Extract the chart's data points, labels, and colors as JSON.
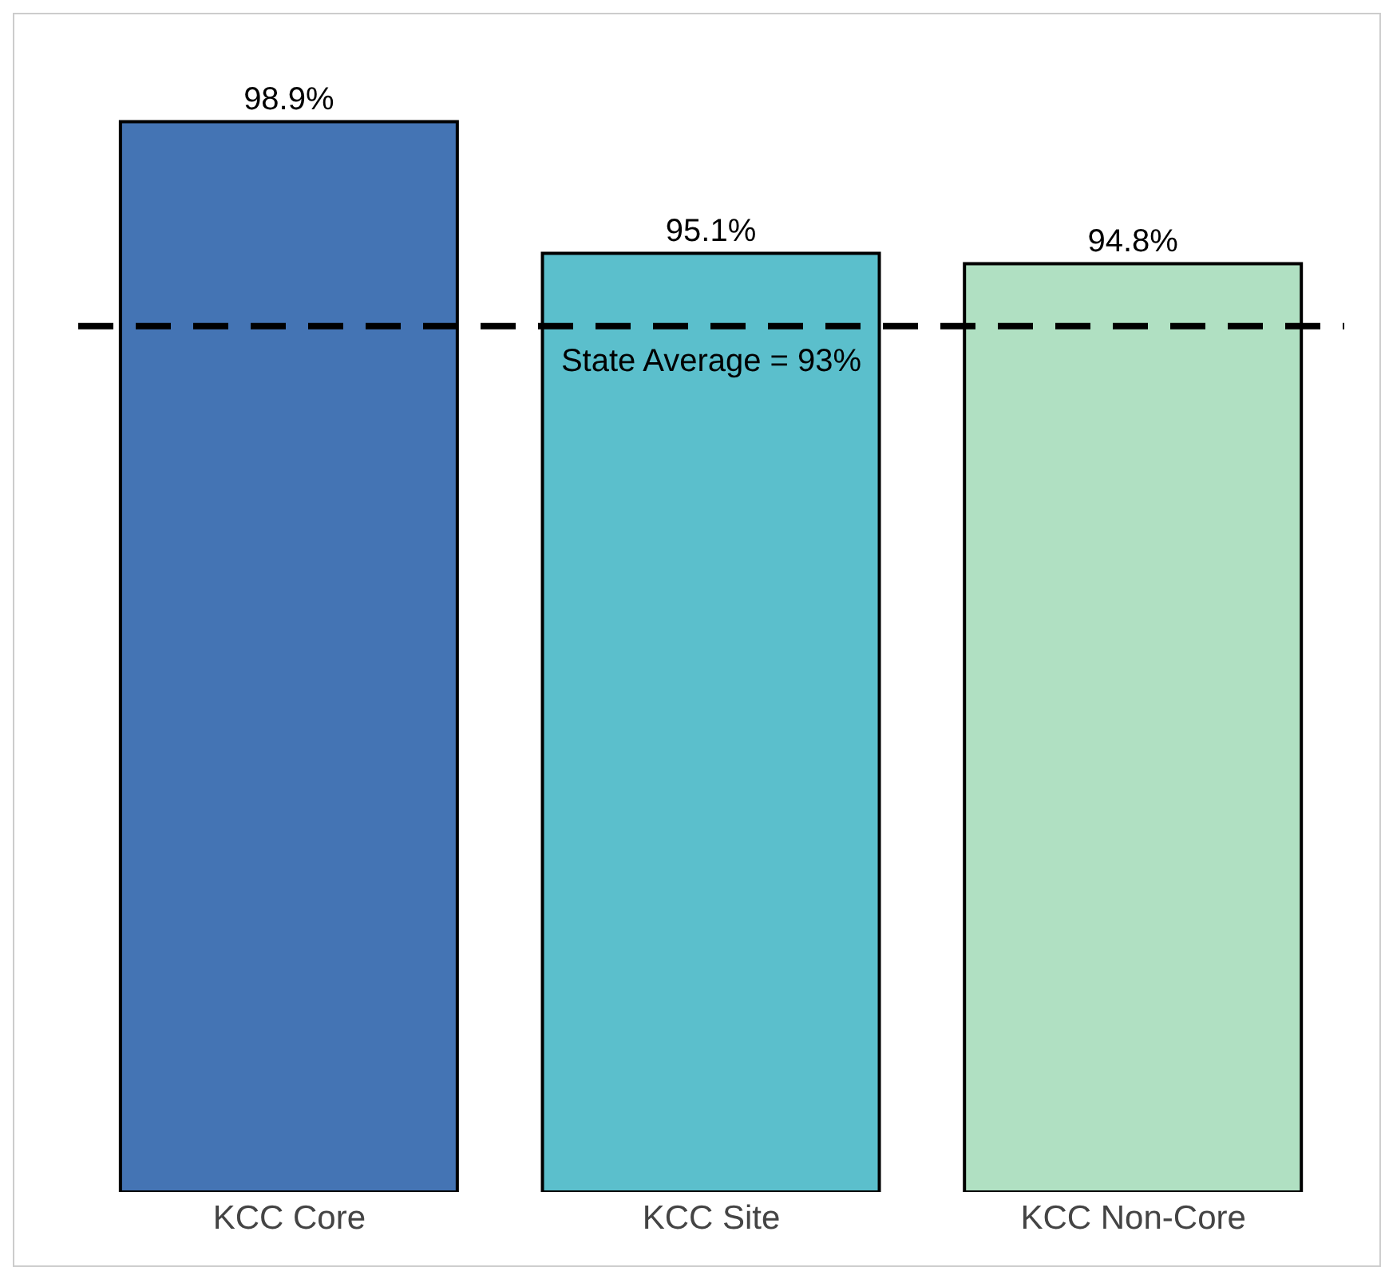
{
  "chart_data": {
    "type": "bar",
    "categories": [
      "KCC Core",
      "KCC Site",
      "KCC Non-Core"
    ],
    "values": [
      98.9,
      95.1,
      94.8
    ],
    "colors": [
      "#4474b4",
      "#5bbfcc",
      "#b0e0c2"
    ],
    "value_labels": [
      "98.9%",
      "95.1%",
      "94.8%"
    ],
    "ylim": [
      68,
      102
    ],
    "tick_labels": "x",
    "grid": false,
    "legend": false,
    "ref_lines": [
      {
        "axis": "y",
        "value": 93,
        "label": "State Average = 93%",
        "color": "#000000",
        "line_style": "dashed"
      }
    ]
  }
}
